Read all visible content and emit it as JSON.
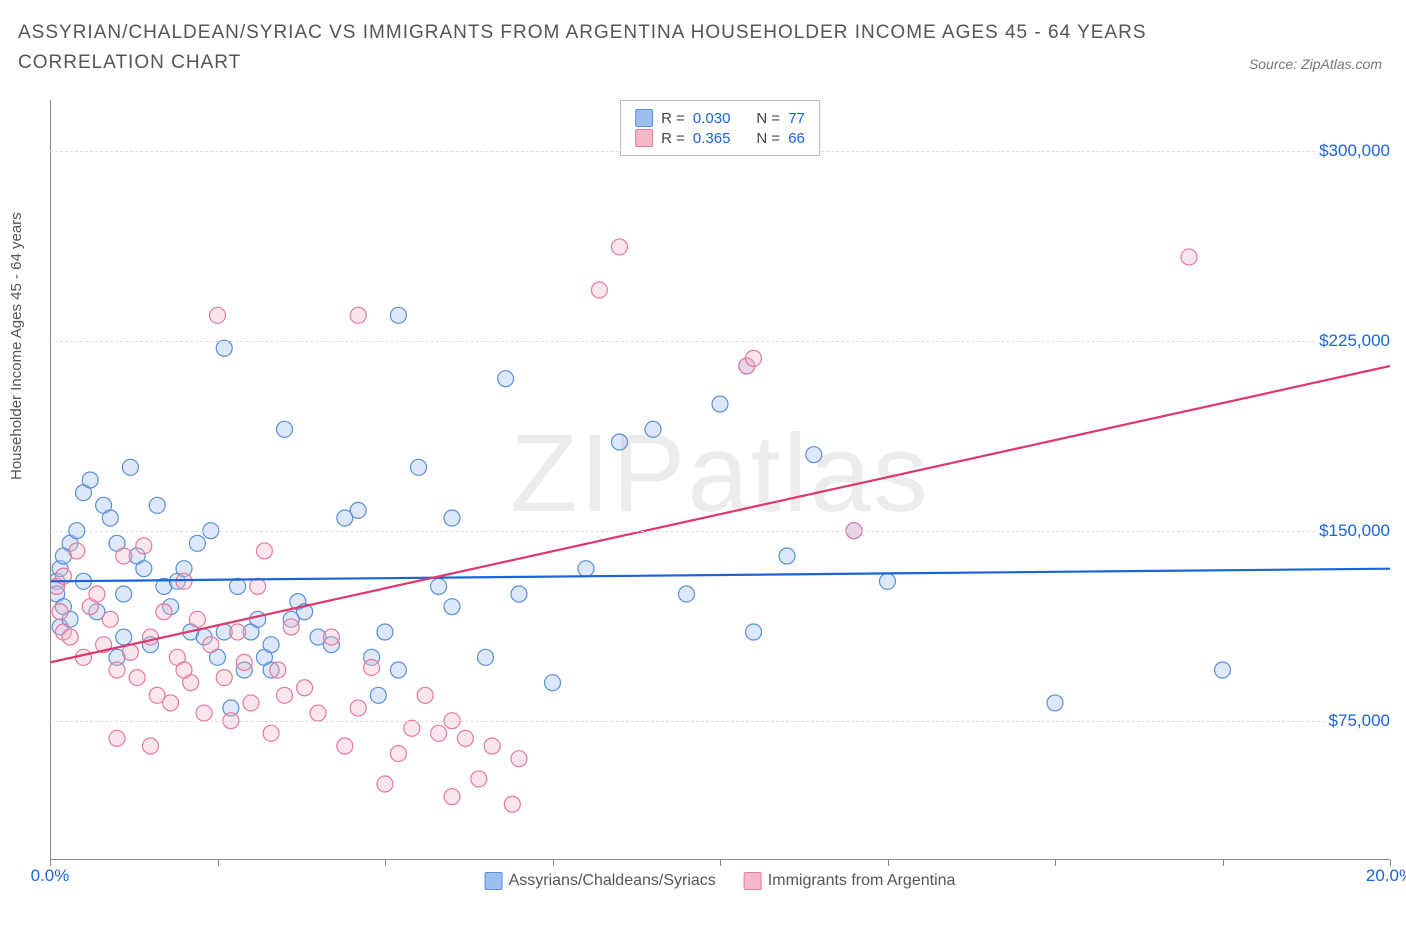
{
  "title": "ASSYRIAN/CHALDEAN/SYRIAC VS IMMIGRANTS FROM ARGENTINA HOUSEHOLDER INCOME AGES 45 - 64 YEARS CORRELATION CHART",
  "source": "Source: ZipAtlas.com",
  "ylabel": "Householder Income Ages 45 - 64 years",
  "watermark": "ZIPatlas",
  "chart": {
    "type": "scatter",
    "xlim": [
      0,
      20
    ],
    "ylim": [
      20000,
      320000
    ],
    "xticks": [
      0,
      2.5,
      5,
      7.5,
      10,
      12.5,
      15,
      17.5,
      20
    ],
    "xticklabels": {
      "0": "0.0%",
      "20": "20.0%"
    },
    "yticks": [
      75000,
      150000,
      225000,
      300000
    ],
    "yticklabels": [
      "$75,000",
      "$150,000",
      "$225,000",
      "$300,000"
    ],
    "grid_color": "#dddddd",
    "axis_color": "#888888",
    "background_color": "#ffffff",
    "marker_radius": 8,
    "marker_stroke_width": 1.2,
    "marker_fill_opacity": 0.35,
    "trend_line_width": 2.2,
    "series": [
      {
        "name": "Assyrians/Chaldeans/Syriacs",
        "color_fill": "#9dbff0",
        "color_stroke": "#5a8fd6",
        "trend_color": "#1b63d6",
        "R": "0.030",
        "N": "77",
        "trend": {
          "x0": 0,
          "y0": 130000,
          "x1": 20,
          "y1": 135000
        },
        "points": [
          [
            0.1,
            130000
          ],
          [
            0.1,
            125000
          ],
          [
            0.15,
            112000
          ],
          [
            0.15,
            135000
          ],
          [
            0.2,
            140000
          ],
          [
            0.2,
            120000
          ],
          [
            0.3,
            145000
          ],
          [
            0.3,
            115000
          ],
          [
            0.4,
            150000
          ],
          [
            0.5,
            165000
          ],
          [
            0.5,
            130000
          ],
          [
            0.6,
            170000
          ],
          [
            0.7,
            118000
          ],
          [
            0.8,
            160000
          ],
          [
            0.9,
            155000
          ],
          [
            1.0,
            145000
          ],
          [
            1.0,
            100000
          ],
          [
            1.1,
            125000
          ],
          [
            1.2,
            175000
          ],
          [
            1.3,
            140000
          ],
          [
            1.4,
            135000
          ],
          [
            1.5,
            105000
          ],
          [
            1.6,
            160000
          ],
          [
            1.7,
            128000
          ],
          [
            1.8,
            120000
          ],
          [
            1.9,
            130000
          ],
          [
            2.0,
            135000
          ],
          [
            2.1,
            110000
          ],
          [
            2.2,
            145000
          ],
          [
            2.3,
            108000
          ],
          [
            2.4,
            150000
          ],
          [
            2.5,
            100000
          ],
          [
            2.6,
            110000
          ],
          [
            2.7,
            80000
          ],
          [
            2.8,
            128000
          ],
          [
            2.9,
            95000
          ],
          [
            3.0,
            110000
          ],
          [
            3.1,
            115000
          ],
          [
            3.2,
            100000
          ],
          [
            3.3,
            105000
          ],
          [
            3.5,
            190000
          ],
          [
            3.6,
            115000
          ],
          [
            3.7,
            122000
          ],
          [
            3.8,
            118000
          ],
          [
            4.0,
            108000
          ],
          [
            4.2,
            105000
          ],
          [
            4.4,
            155000
          ],
          [
            4.6,
            158000
          ],
          [
            4.8,
            100000
          ],
          [
            5.0,
            110000
          ],
          [
            5.2,
            95000
          ],
          [
            5.2,
            235000
          ],
          [
            5.5,
            175000
          ],
          [
            5.8,
            128000
          ],
          [
            6.0,
            155000
          ],
          [
            6.0,
            120000
          ],
          [
            6.5,
            100000
          ],
          [
            6.8,
            210000
          ],
          [
            7.0,
            125000
          ],
          [
            7.5,
            90000
          ],
          [
            8.0,
            135000
          ],
          [
            8.5,
            185000
          ],
          [
            9.0,
            190000
          ],
          [
            9.5,
            125000
          ],
          [
            10.0,
            200000
          ],
          [
            10.4,
            215000
          ],
          [
            10.5,
            110000
          ],
          [
            11.0,
            140000
          ],
          [
            11.4,
            180000
          ],
          [
            12.0,
            150000
          ],
          [
            12.5,
            130000
          ],
          [
            15.0,
            82000
          ],
          [
            17.5,
            95000
          ],
          [
            2.6,
            222000
          ],
          [
            3.3,
            95000
          ],
          [
            4.9,
            85000
          ],
          [
            1.1,
            108000
          ]
        ]
      },
      {
        "name": "Immigrants from Argentina",
        "color_fill": "#f4b8c6",
        "color_stroke": "#e47a9a",
        "trend_color": "#e0376b",
        "R": "0.365",
        "N": "66",
        "trend": {
          "x0": 0,
          "y0": 98000,
          "x1": 20,
          "y1": 215000
        },
        "points": [
          [
            0.1,
            128000
          ],
          [
            0.15,
            118000
          ],
          [
            0.2,
            132000
          ],
          [
            0.2,
            110000
          ],
          [
            0.3,
            108000
          ],
          [
            0.4,
            142000
          ],
          [
            0.5,
            100000
          ],
          [
            0.6,
            120000
          ],
          [
            0.7,
            125000
          ],
          [
            0.8,
            105000
          ],
          [
            0.9,
            115000
          ],
          [
            1.0,
            95000
          ],
          [
            1.1,
            140000
          ],
          [
            1.2,
            102000
          ],
          [
            1.3,
            92000
          ],
          [
            1.4,
            144000
          ],
          [
            1.5,
            108000
          ],
          [
            1.6,
            85000
          ],
          [
            1.7,
            118000
          ],
          [
            1.8,
            82000
          ],
          [
            1.9,
            100000
          ],
          [
            2.0,
            130000
          ],
          [
            2.1,
            90000
          ],
          [
            2.2,
            115000
          ],
          [
            2.3,
            78000
          ],
          [
            2.4,
            105000
          ],
          [
            2.5,
            235000
          ],
          [
            2.6,
            92000
          ],
          [
            2.7,
            75000
          ],
          [
            2.8,
            110000
          ],
          [
            2.9,
            98000
          ],
          [
            3.0,
            82000
          ],
          [
            3.1,
            128000
          ],
          [
            3.2,
            142000
          ],
          [
            3.3,
            70000
          ],
          [
            3.4,
            95000
          ],
          [
            3.5,
            85000
          ],
          [
            3.6,
            112000
          ],
          [
            3.8,
            88000
          ],
          [
            4.0,
            78000
          ],
          [
            4.2,
            108000
          ],
          [
            4.4,
            65000
          ],
          [
            4.6,
            80000
          ],
          [
            4.6,
            235000
          ],
          [
            4.8,
            96000
          ],
          [
            5.0,
            50000
          ],
          [
            5.2,
            62000
          ],
          [
            5.4,
            72000
          ],
          [
            5.6,
            85000
          ],
          [
            5.8,
            70000
          ],
          [
            6.0,
            75000
          ],
          [
            6.0,
            45000
          ],
          [
            6.2,
            68000
          ],
          [
            6.4,
            52000
          ],
          [
            6.6,
            65000
          ],
          [
            6.9,
            42000
          ],
          [
            7.0,
            60000
          ],
          [
            8.2,
            245000
          ],
          [
            8.5,
            262000
          ],
          [
            10.4,
            215000
          ],
          [
            10.5,
            218000
          ],
          [
            12.0,
            150000
          ],
          [
            17.0,
            258000
          ],
          [
            2.0,
            95000
          ],
          [
            1.5,
            65000
          ],
          [
            1.0,
            68000
          ]
        ]
      }
    ]
  },
  "legend_top_labels": {
    "R": "R =",
    "N": "N ="
  },
  "colors": {
    "text_title": "#555555",
    "text_axis": "#555555",
    "tick_value": "#1b63d6",
    "source_text": "#777777"
  }
}
